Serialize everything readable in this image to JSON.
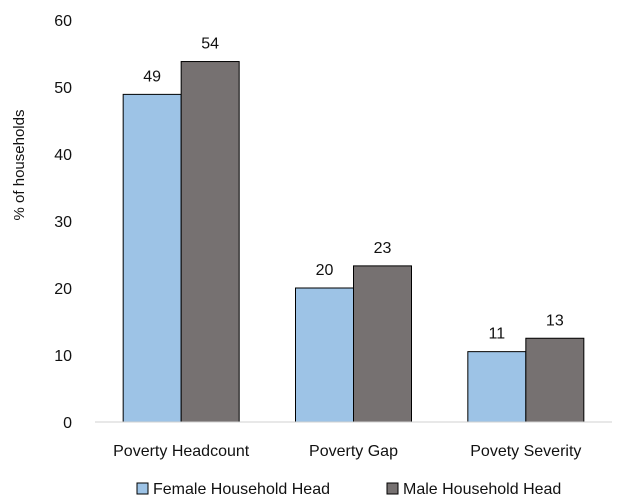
{
  "chart_data": {
    "type": "bar",
    "ylabel": "% of households",
    "ylim": [
      0,
      60
    ],
    "yticks": [
      0,
      10,
      20,
      30,
      40,
      50,
      60
    ],
    "categories": [
      "Poverty Headcount",
      "Poverty Gap",
      "Povety Severity"
    ],
    "series": [
      {
        "name": "Female Household Head",
        "color": "#9DC3E6",
        "values": [
          48.9,
          20.0,
          10.5
        ],
        "labels": [
          "49",
          "20",
          "11"
        ]
      },
      {
        "name": "Male Household Head",
        "color": "#767171",
        "values": [
          53.8,
          23.3,
          12.5
        ],
        "labels": [
          "54",
          "23",
          "13"
        ]
      }
    ],
    "grid": false,
    "legend_position": "bottom"
  }
}
